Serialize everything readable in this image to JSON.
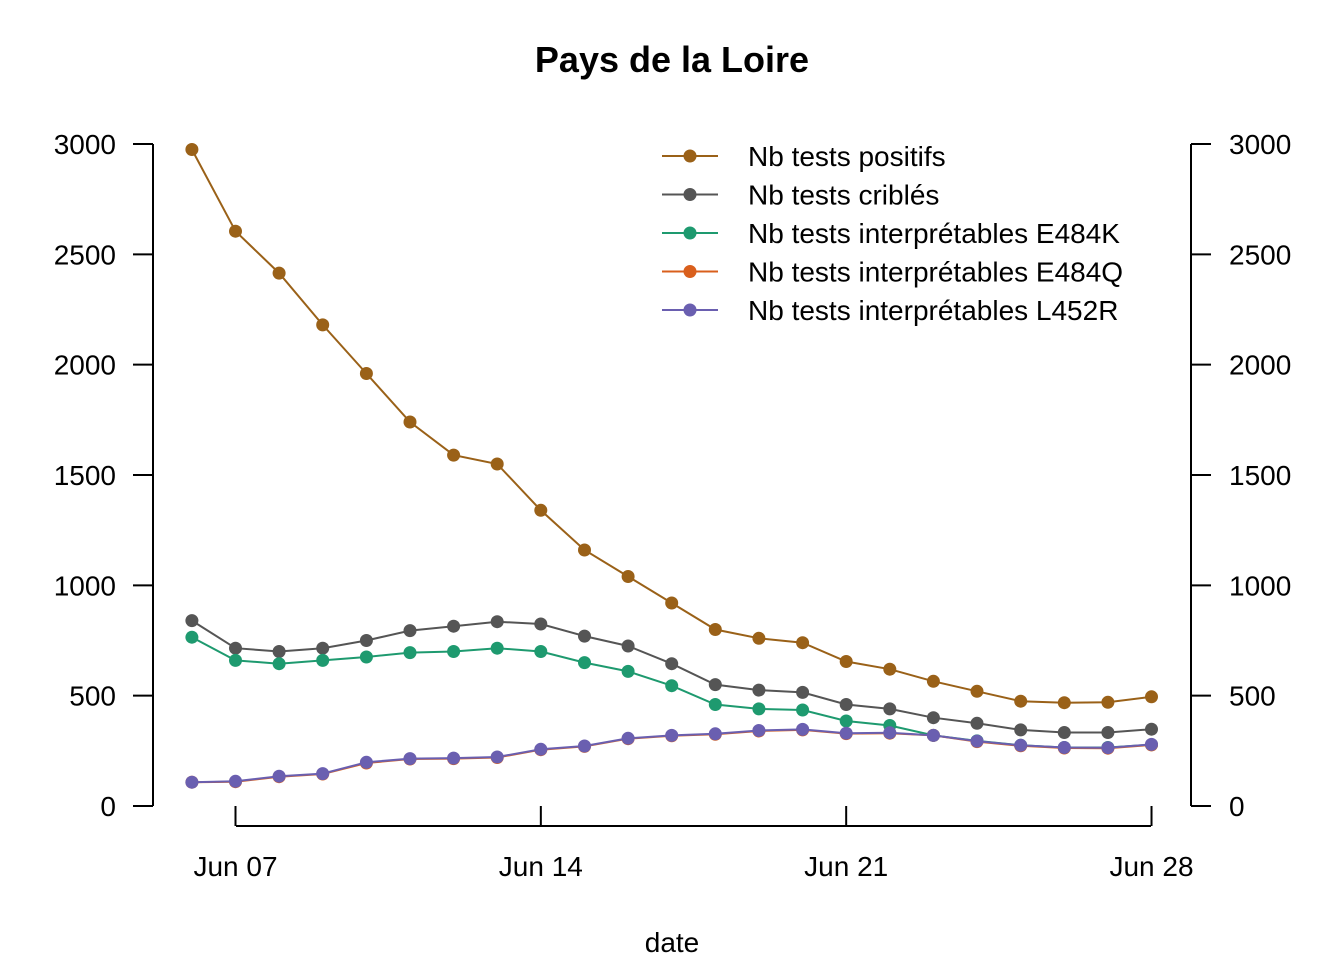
{
  "chart_data": {
    "type": "line",
    "title": "Pays de la Loire",
    "xlabel": "date",
    "ylabel": "",
    "ylim": [
      0,
      3000
    ],
    "yticks": [
      0,
      500,
      1000,
      1500,
      2000,
      2500,
      3000
    ],
    "ytick_labels": [
      "0",
      "500",
      "1000",
      "1500",
      "2000",
      "2500",
      "3000"
    ],
    "xlim": [
      "2021-06-05",
      "2021-06-28"
    ],
    "xticks": [
      "2021-06-07",
      "2021-06-14",
      "2021-06-21",
      "2021-06-28"
    ],
    "xtick_labels": [
      "Jun 07",
      "Jun 14",
      "Jun 21",
      "Jun 28"
    ],
    "right_axis": true,
    "legend_position": "top-right",
    "grid": false,
    "x": [
      "2021-06-06",
      "2021-06-07",
      "2021-06-08",
      "2021-06-09",
      "2021-06-10",
      "2021-06-11",
      "2021-06-12",
      "2021-06-13",
      "2021-06-14",
      "2021-06-15",
      "2021-06-16",
      "2021-06-17",
      "2021-06-18",
      "2021-06-19",
      "2021-06-20",
      "2021-06-21",
      "2021-06-22",
      "2021-06-23",
      "2021-06-24",
      "2021-06-25",
      "2021-06-26",
      "2021-06-27",
      "2021-06-28"
    ],
    "series": [
      {
        "name": "Nb tests positifs",
        "color": "#9a6118",
        "values": [
          2975,
          2605,
          2415,
          2180,
          1960,
          1740,
          1590,
          1550,
          1340,
          1160,
          1040,
          920,
          800,
          760,
          740,
          655,
          620,
          565,
          520,
          475,
          468,
          470,
          495
        ]
      },
      {
        "name": "Nb tests criblés",
        "color": "#555555",
        "values": [
          840,
          715,
          700,
          715,
          750,
          795,
          815,
          835,
          825,
          770,
          725,
          645,
          550,
          525,
          515,
          460,
          440,
          400,
          375,
          345,
          333,
          333,
          348
        ]
      },
      {
        "name": "Nb tests interprétables E484K",
        "color": "#1e9a6f",
        "values": [
          765,
          660,
          645,
          660,
          675,
          695,
          700,
          715,
          700,
          650,
          610,
          545,
          460,
          440,
          435,
          385,
          365,
          320,
          295,
          275,
          265,
          265,
          278
        ]
      },
      {
        "name": "Nb tests interprétables E484Q",
        "color": "#d95f1c",
        "values": [
          108,
          110,
          133,
          145,
          195,
          213,
          215,
          220,
          255,
          270,
          305,
          318,
          325,
          340,
          345,
          328,
          330,
          320,
          292,
          273,
          263,
          262,
          277
        ]
      },
      {
        "name": "Nb tests interprétables L452R",
        "color": "#6a5fb0",
        "values": [
          108,
          112,
          135,
          147,
          198,
          215,
          217,
          222,
          257,
          272,
          307,
          320,
          327,
          342,
          347,
          330,
          332,
          320,
          294,
          275,
          265,
          264,
          279
        ]
      }
    ]
  }
}
